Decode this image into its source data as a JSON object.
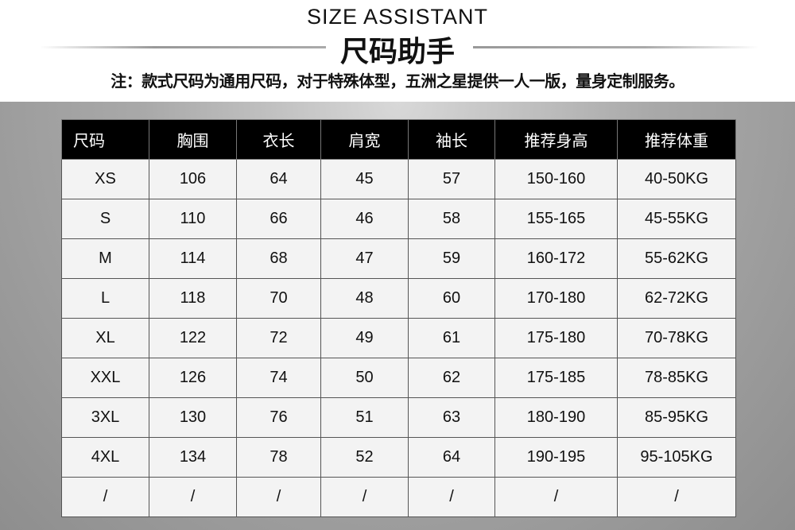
{
  "header": {
    "title_en": "SIZE ASSISTANT",
    "title_cn": "尺码助手",
    "note": "注：款式尺码为通用尺码，对于特殊体型，五洲之星提供一人一版，量身定制服务。"
  },
  "table": {
    "columns": [
      "尺码",
      "胸围",
      "衣长",
      "肩宽",
      "袖长",
      "推荐身高",
      "推荐体重"
    ],
    "rows": [
      [
        "XS",
        "106",
        "64",
        "45",
        "57",
        "150-160",
        "40-50KG"
      ],
      [
        "S",
        "110",
        "66",
        "46",
        "58",
        "155-165",
        "45-55KG"
      ],
      [
        "M",
        "114",
        "68",
        "47",
        "59",
        "160-172",
        "55-62KG"
      ],
      [
        "L",
        "118",
        "70",
        "48",
        "60",
        "170-180",
        "62-72KG"
      ],
      [
        "XL",
        "122",
        "72",
        "49",
        "61",
        "175-180",
        "70-78KG"
      ],
      [
        "XXL",
        "126",
        "74",
        "50",
        "62",
        "175-185",
        "78-85KG"
      ],
      [
        "3XL",
        "130",
        "76",
        "51",
        "63",
        "180-190",
        "85-95KG"
      ],
      [
        "4XL",
        "134",
        "78",
        "52",
        "64",
        "190-195",
        "95-105KG"
      ],
      [
        "/",
        "/",
        "/",
        "/",
        "/",
        "/",
        "/"
      ]
    ]
  }
}
